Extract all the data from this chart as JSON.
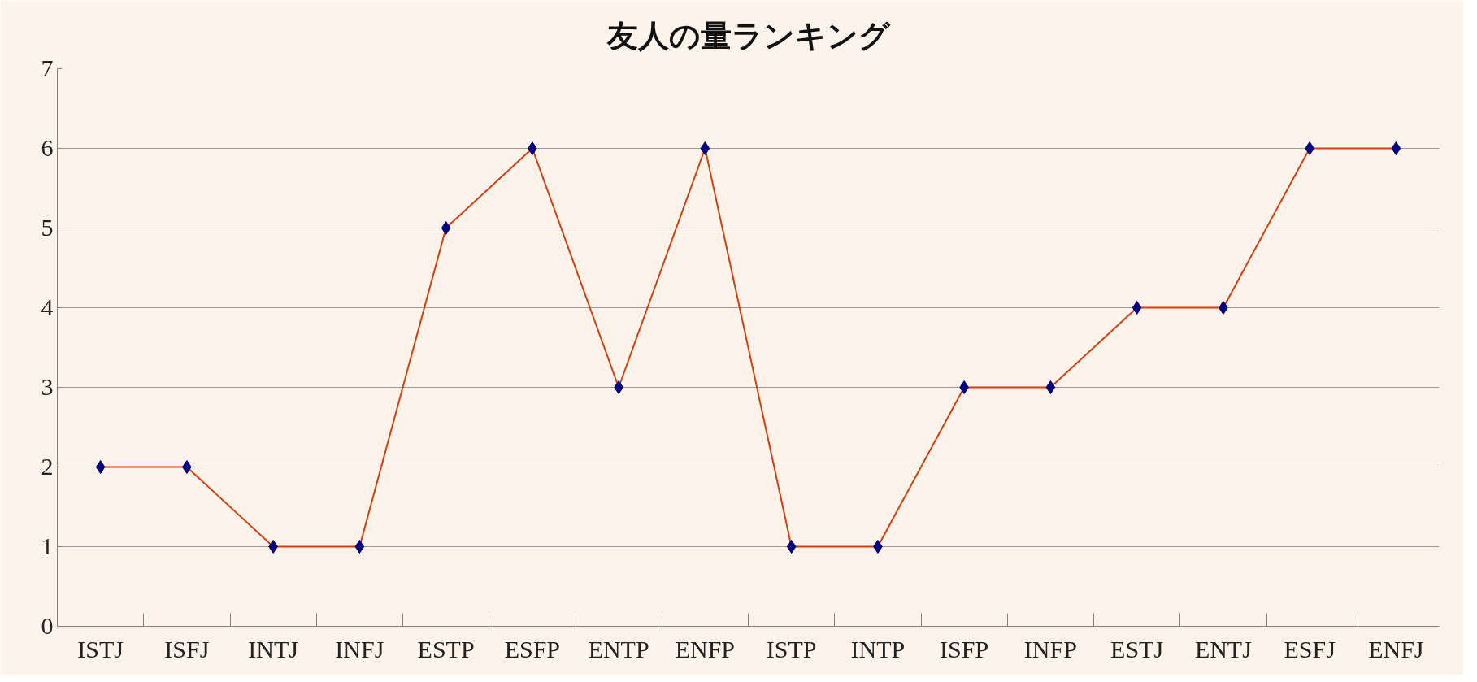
{
  "chart_data": {
    "type": "line",
    "title": "友人の量ランキング",
    "categories": [
      "ISTJ",
      "ISFJ",
      "INTJ",
      "INFJ",
      "ESTP",
      "ESFP",
      "ENTP",
      "ENFP",
      "ISTP",
      "INTP",
      "ISFP",
      "INFP",
      "ESTJ",
      "ENTJ",
      "ESFJ",
      "ENFJ"
    ],
    "series": [
      {
        "color": "#d2400f",
        "colors": [
          "#000080",
          "#000080",
          "#000080",
          "#000080",
          "#000080",
          "#000080",
          "#000080",
          "#000080",
          "#000080",
          "#000080",
          "#000080",
          "#000080",
          "#000080",
          "#000080",
          "#000080",
          "#000080"
        ],
        "values": [
          2,
          2,
          1,
          1,
          5,
          6,
          3,
          6,
          1,
          1,
          3,
          3,
          4,
          4,
          6,
          6
        ]
      }
    ],
    "ylim": [
      0,
      7
    ],
    "yticks": [
      0,
      1,
      2,
      3,
      4,
      5,
      6,
      7
    ],
    "grid": "y",
    "marker": "diamond",
    "line_style": "solid"
  }
}
